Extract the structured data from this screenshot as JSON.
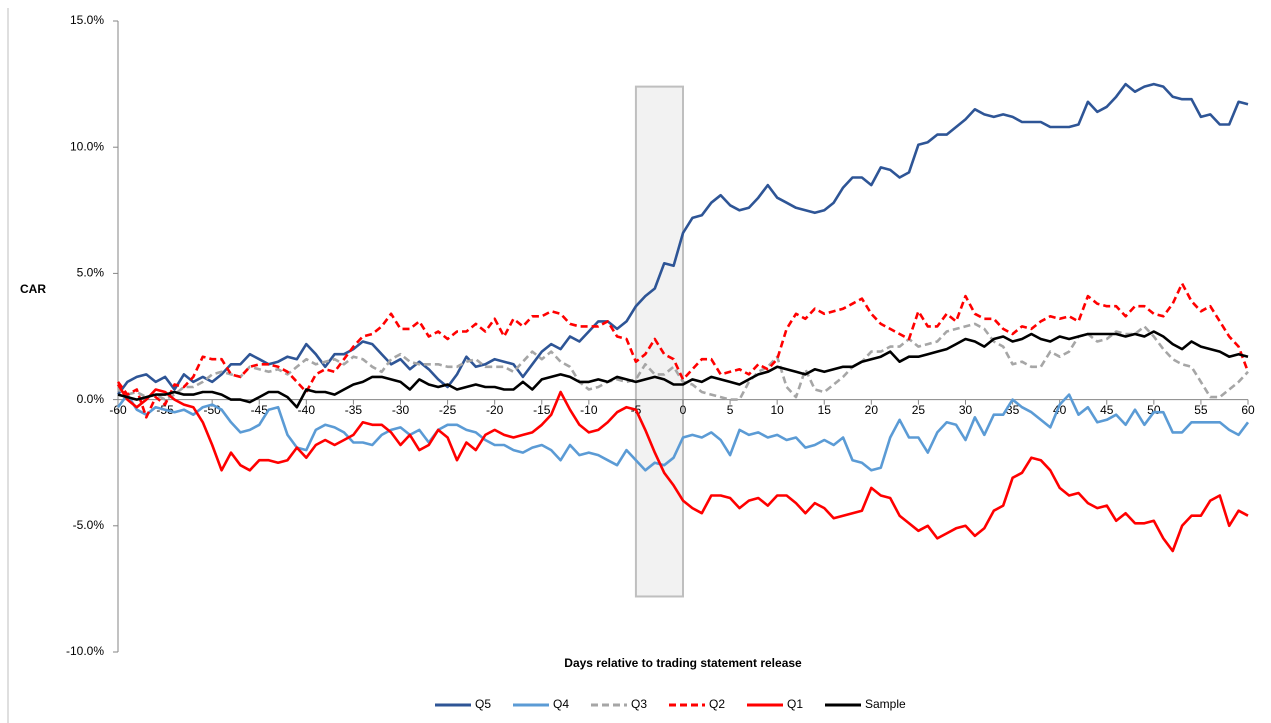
{
  "chart_data": {
    "type": "line",
    "x_label": "Days relative to trading statement release",
    "y_label": "CAR",
    "x": [
      -60,
      -59,
      -58,
      -57,
      -56,
      -55,
      -54,
      -53,
      -52,
      -51,
      -50,
      -49,
      -48,
      -47,
      -46,
      -45,
      -44,
      -43,
      -42,
      -41,
      -40,
      -39,
      -38,
      -37,
      -36,
      -35,
      -34,
      -33,
      -32,
      -31,
      -30,
      -29,
      -28,
      -27,
      -26,
      -25,
      -24,
      -23,
      -22,
      -21,
      -20,
      -19,
      -18,
      -17,
      -16,
      -15,
      -14,
      -13,
      -12,
      -11,
      -10,
      -9,
      -8,
      -7,
      -6,
      -5,
      -4,
      -3,
      -2,
      -1,
      0,
      1,
      2,
      3,
      4,
      5,
      6,
      7,
      8,
      9,
      10,
      11,
      12,
      13,
      14,
      15,
      16,
      17,
      18,
      19,
      20,
      21,
      22,
      23,
      24,
      25,
      26,
      27,
      28,
      29,
      30,
      31,
      32,
      33,
      34,
      35,
      36,
      37,
      38,
      39,
      40,
      41,
      42,
      43,
      44,
      45,
      46,
      47,
      48,
      49,
      50,
      51,
      52,
      53,
      54,
      55,
      56,
      57,
      58,
      59,
      60
    ],
    "xlim": [
      -60,
      60
    ],
    "xticks": [
      -60,
      -55,
      -50,
      -45,
      -40,
      -35,
      -30,
      -25,
      -20,
      -15,
      -10,
      -5,
      0,
      5,
      10,
      15,
      20,
      25,
      30,
      35,
      40,
      45,
      50,
      55,
      60
    ],
    "ylim": [
      -10,
      15
    ],
    "yticks": [
      {
        "value": -10,
        "label": "-10.0%"
      },
      {
        "value": -5,
        "label": "-5.0%"
      },
      {
        "value": 0,
        "label": "0.0%"
      },
      {
        "value": 5,
        "label": "5.0%"
      },
      {
        "value": 10,
        "label": "10.0%"
      },
      {
        "value": 15,
        "label": "15.0%"
      }
    ],
    "shaded_window": {
      "x": [
        -5,
        0
      ],
      "y": [
        -7.8,
        12.4
      ],
      "color": "#f2f2f2"
    },
    "legend": "bottom",
    "series": [
      {
        "name": "Q5",
        "color": "#2e5596",
        "dashed": false,
        "values": [
          0.2,
          0.7,
          0.9,
          1.0,
          0.7,
          0.9,
          0.4,
          1.0,
          0.7,
          0.9,
          0.7,
          1.0,
          1.4,
          1.4,
          1.8,
          1.6,
          1.4,
          1.5,
          1.7,
          1.6,
          2.2,
          1.8,
          1.3,
          1.8,
          1.8,
          2.0,
          2.3,
          2.2,
          1.8,
          1.4,
          1.6,
          1.2,
          1.5,
          1.2,
          0.8,
          0.5,
          1.0,
          1.7,
          1.3,
          1.4,
          1.6,
          1.5,
          1.4,
          0.9,
          1.4,
          1.9,
          2.2,
          2.0,
          2.5,
          2.3,
          2.7,
          3.1,
          3.1,
          2.8,
          3.1,
          3.7,
          4.1,
          4.4,
          5.4,
          5.3,
          6.6,
          7.2,
          7.3,
          7.8,
          8.1,
          7.7,
          7.5,
          7.6,
          8.0,
          8.5,
          8.0,
          7.8,
          7.6,
          7.5,
          7.4,
          7.5,
          7.8,
          8.4,
          8.8,
          8.8,
          8.5,
          9.2,
          9.1,
          8.8,
          9.0,
          10.1,
          10.2,
          10.5,
          10.5,
          10.8,
          11.1,
          11.5,
          11.3,
          11.2,
          11.3,
          11.2,
          11.0,
          11.0,
          11.0,
          10.8,
          10.8,
          10.8,
          10.9,
          11.8,
          11.4,
          11.6,
          12.0,
          12.5,
          12.2,
          12.4,
          12.5,
          12.4,
          12.0,
          11.9,
          11.9,
          11.2,
          11.3,
          10.9,
          10.9,
          11.8,
          11.7
        ]
      },
      {
        "name": "Q4",
        "color": "#5b9bd5",
        "dashed": false,
        "values": [
          -0.3,
          0.2,
          -0.4,
          -0.6,
          -0.3,
          -0.4,
          -0.5,
          -0.4,
          -0.6,
          -0.3,
          -0.2,
          -0.4,
          -0.9,
          -1.3,
          -1.2,
          -1.0,
          -0.4,
          -0.3,
          -1.4,
          -1.9,
          -2.0,
          -1.2,
          -1.0,
          -1.1,
          -1.3,
          -1.7,
          -1.7,
          -1.8,
          -1.4,
          -1.2,
          -1.1,
          -1.4,
          -1.2,
          -1.7,
          -1.2,
          -1.0,
          -1.0,
          -1.2,
          -1.3,
          -1.6,
          -1.8,
          -1.8,
          -2.0,
          -2.1,
          -1.9,
          -1.8,
          -2.0,
          -2.4,
          -1.8,
          -2.2,
          -2.1,
          -2.2,
          -2.4,
          -2.6,
          -2.0,
          -2.4,
          -2.8,
          -2.5,
          -2.6,
          -2.3,
          -1.5,
          -1.4,
          -1.5,
          -1.3,
          -1.6,
          -2.2,
          -1.2,
          -1.4,
          -1.3,
          -1.5,
          -1.4,
          -1.6,
          -1.5,
          -1.9,
          -1.8,
          -1.6,
          -1.8,
          -1.5,
          -2.4,
          -2.5,
          -2.8,
          -2.7,
          -1.5,
          -0.8,
          -1.5,
          -1.5,
          -2.1,
          -1.3,
          -0.9,
          -1.0,
          -1.6,
          -0.7,
          -1.4,
          -0.6,
          -0.6,
          0.0,
          -0.3,
          -0.5,
          -0.8,
          -1.1,
          -0.2,
          0.2,
          -0.6,
          -0.3,
          -0.9,
          -0.8,
          -0.6,
          -1.0,
          -0.4,
          -1.0,
          -0.5,
          -0.5,
          -1.3,
          -1.3,
          -0.9,
          -0.9,
          -0.9,
          -0.9,
          -1.2,
          -1.4,
          -0.9
        ]
      },
      {
        "name": "Q3",
        "color": "#a6a6a6",
        "dashed": true,
        "values": [
          0.4,
          0.2,
          0.3,
          0.1,
          0.2,
          0.0,
          0.2,
          0.5,
          0.5,
          0.7,
          1.0,
          1.1,
          1.0,
          0.9,
          1.3,
          1.2,
          1.1,
          1.2,
          1.0,
          1.3,
          1.6,
          1.4,
          1.5,
          1.6,
          1.4,
          1.7,
          1.6,
          1.3,
          1.1,
          1.6,
          1.8,
          1.5,
          1.4,
          1.4,
          1.4,
          1.3,
          1.3,
          1.5,
          1.6,
          1.3,
          1.3,
          1.3,
          1.1,
          1.5,
          1.9,
          1.6,
          1.9,
          1.5,
          1.3,
          0.7,
          0.4,
          0.5,
          0.7,
          0.8,
          0.7,
          0.8,
          1.4,
          1.0,
          1.0,
          1.3,
          0.7,
          0.6,
          0.3,
          0.2,
          0.1,
          0.0,
          0.0,
          0.7,
          1.1,
          1.3,
          1.7,
          0.5,
          0.1,
          1.2,
          0.4,
          0.3,
          0.6,
          0.9,
          1.3,
          1.5,
          1.9,
          1.9,
          2.1,
          2.1,
          2.4,
          2.1,
          2.2,
          2.3,
          2.7,
          2.8,
          2.9,
          3.0,
          2.8,
          2.3,
          2.1,
          1.4,
          1.5,
          1.3,
          1.3,
          1.9,
          1.7,
          1.9,
          2.5,
          2.6,
          2.3,
          2.4,
          2.7,
          2.6,
          2.6,
          2.9,
          2.5,
          2.0,
          1.6,
          1.4,
          1.3,
          0.7,
          0.1,
          0.1,
          0.4,
          0.7,
          1.1
        ]
      },
      {
        "name": "Q2",
        "color": "#ff0000",
        "dashed": true,
        "values": [
          0.7,
          0.2,
          0.4,
          -0.7,
          0.1,
          -0.2,
          0.6,
          0.5,
          0.9,
          1.7,
          1.6,
          1.6,
          1.0,
          0.9,
          1.3,
          1.4,
          1.4,
          1.3,
          1.1,
          0.7,
          0.3,
          1.0,
          1.2,
          1.1,
          1.6,
          2.1,
          2.5,
          2.6,
          2.9,
          3.4,
          2.8,
          2.8,
          3.1,
          2.5,
          2.7,
          2.4,
          2.7,
          2.7,
          3.0,
          2.7,
          3.2,
          2.5,
          3.2,
          2.9,
          3.3,
          3.3,
          3.5,
          3.4,
          3.0,
          2.9,
          2.9,
          2.9,
          3.1,
          2.5,
          2.4,
          1.5,
          1.8,
          2.4,
          1.8,
          1.6,
          0.8,
          1.2,
          1.6,
          1.6,
          1.0,
          1.1,
          1.2,
          1.0,
          1.4,
          1.2,
          1.6,
          2.8,
          3.4,
          3.2,
          3.6,
          3.4,
          3.5,
          3.6,
          3.8,
          4.0,
          3.4,
          3.0,
          2.8,
          2.6,
          2.4,
          3.5,
          2.9,
          2.9,
          3.4,
          3.1,
          4.1,
          3.4,
          3.2,
          3.2,
          2.8,
          2.6,
          2.9,
          2.8,
          3.1,
          3.3,
          3.2,
          3.3,
          3.1,
          4.1,
          3.8,
          3.7,
          3.7,
          3.3,
          3.7,
          3.7,
          3.4,
          3.3,
          3.8,
          4.6,
          3.9,
          3.5,
          3.7,
          3.1,
          2.5,
          2.1,
          1.1
        ]
      },
      {
        "name": "Q1",
        "color": "#ff0000",
        "dashed": false,
        "values": [
          0.6,
          0.0,
          -0.3,
          0.0,
          0.4,
          0.3,
          0.0,
          -0.2,
          -0.3,
          -0.9,
          -1.8,
          -2.8,
          -2.1,
          -2.6,
          -2.8,
          -2.4,
          -2.4,
          -2.5,
          -2.4,
          -1.9,
          -2.3,
          -1.8,
          -1.6,
          -1.8,
          -1.6,
          -1.4,
          -0.9,
          -1.0,
          -1.0,
          -1.3,
          -1.8,
          -1.4,
          -2.0,
          -1.8,
          -1.2,
          -1.5,
          -2.4,
          -1.7,
          -2.0,
          -1.4,
          -1.2,
          -1.4,
          -1.5,
          -1.4,
          -1.3,
          -1.0,
          -0.6,
          0.3,
          -0.4,
          -1.0,
          -1.3,
          -1.2,
          -0.9,
          -0.5,
          -0.3,
          -0.4,
          -1.2,
          -2.1,
          -2.9,
          -3.4,
          -4.0,
          -4.3,
          -4.5,
          -3.8,
          -3.8,
          -3.9,
          -4.3,
          -4.0,
          -3.9,
          -4.2,
          -3.8,
          -3.8,
          -4.1,
          -4.5,
          -4.1,
          -4.3,
          -4.7,
          -4.6,
          -4.5,
          -4.4,
          -3.5,
          -3.8,
          -3.9,
          -4.6,
          -4.9,
          -5.2,
          -5.0,
          -5.5,
          -5.3,
          -5.1,
          -5.0,
          -5.4,
          -5.1,
          -4.4,
          -4.2,
          -3.1,
          -2.9,
          -2.3,
          -2.4,
          -2.8,
          -3.5,
          -3.8,
          -3.7,
          -4.1,
          -4.3,
          -4.2,
          -4.8,
          -4.5,
          -4.9,
          -4.9,
          -4.8,
          -5.5,
          -6.0,
          -5.0,
          -4.6,
          -4.6,
          -4.0,
          -3.8,
          -5.0,
          -4.4,
          -4.6
        ]
      },
      {
        "name": "Sample",
        "color": "#000000",
        "dashed": false,
        "values": [
          0.2,
          0.1,
          0.0,
          0.1,
          0.2,
          0.2,
          0.3,
          0.2,
          0.2,
          0.3,
          0.3,
          0.2,
          0.0,
          0.0,
          -0.1,
          0.1,
          0.3,
          0.3,
          0.1,
          -0.3,
          0.4,
          0.3,
          0.3,
          0.2,
          0.4,
          0.6,
          0.7,
          0.9,
          0.9,
          0.8,
          0.7,
          0.4,
          0.8,
          0.6,
          0.5,
          0.6,
          0.4,
          0.5,
          0.6,
          0.5,
          0.5,
          0.4,
          0.4,
          0.7,
          0.4,
          0.8,
          0.9,
          1.0,
          0.9,
          0.7,
          0.7,
          0.8,
          0.7,
          0.9,
          0.8,
          0.7,
          0.8,
          0.9,
          0.8,
          0.6,
          0.6,
          0.8,
          0.7,
          0.9,
          0.8,
          0.7,
          0.6,
          0.8,
          1.0,
          1.1,
          1.3,
          1.2,
          1.1,
          1.0,
          1.2,
          1.1,
          1.2,
          1.3,
          1.3,
          1.5,
          1.6,
          1.7,
          1.9,
          1.5,
          1.7,
          1.7,
          1.8,
          1.9,
          2.0,
          2.2,
          2.4,
          2.3,
          2.1,
          2.4,
          2.5,
          2.3,
          2.4,
          2.6,
          2.4,
          2.3,
          2.5,
          2.4,
          2.5,
          2.6,
          2.6,
          2.6,
          2.6,
          2.5,
          2.6,
          2.5,
          2.7,
          2.5,
          2.2,
          2.0,
          2.3,
          2.1,
          2.0,
          1.9,
          1.7,
          1.8,
          1.7
        ]
      }
    ]
  }
}
